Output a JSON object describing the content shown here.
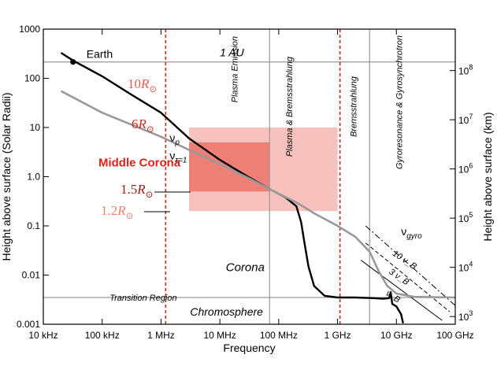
{
  "chart_data": {
    "type": "line",
    "title": "",
    "xlabel": "Frequency",
    "ylabel_left": "Height above surface (Solar Radii)",
    "ylabel_right": "Height above surface (km)",
    "x_scale": "log",
    "y_scale": "log",
    "xlim_hz": [
      10000.0,
      100000000000.0
    ],
    "ylim_rsun": [
      0.001,
      1000
    ],
    "x_ticks": [
      {
        "value": 10000.0,
        "label": "10 kHz"
      },
      {
        "value": 100000.0,
        "label": "100 kHz"
      },
      {
        "value": 1000000.0,
        "label": "1 MHz"
      },
      {
        "value": 10000000.0,
        "label": "10 MHz"
      },
      {
        "value": 100000000.0,
        "label": "100 MHz"
      },
      {
        "value": 1000000000.0,
        "label": "1 GHz"
      },
      {
        "value": 10000000000.0,
        "label": "10 GHz"
      },
      {
        "value": 100000000000.0,
        "label": "100 GHz"
      }
    ],
    "y_ticks_left": [
      {
        "value": 0.001,
        "label": "0.001"
      },
      {
        "value": 0.01,
        "label": "0.01"
      },
      {
        "value": 0.1,
        "label": "0.1"
      },
      {
        "value": 1,
        "label": "1.0"
      },
      {
        "value": 10,
        "label": "10"
      },
      {
        "value": 100,
        "label": "100"
      },
      {
        "value": 1000,
        "label": "1000"
      }
    ],
    "y_ticks_right": [
      {
        "value": 0.001437,
        "base": "10",
        "exp": "3"
      },
      {
        "value": 0.01437,
        "base": "10",
        "exp": "4"
      },
      {
        "value": 0.1437,
        "base": "10",
        "exp": "5"
      },
      {
        "value": 1.437,
        "base": "10",
        "exp": "6"
      },
      {
        "value": 14.37,
        "base": "10",
        "exp": "7"
      },
      {
        "value": 143.7,
        "base": "10",
        "exp": "8"
      }
    ],
    "series": [
      {
        "name": "nu_p",
        "label_base": "ν",
        "label_sub": "p",
        "color": "#000000",
        "points": [
          [
            20000.0,
            330
          ],
          [
            32000.0,
            230
          ],
          [
            100000.0,
            110
          ],
          [
            300000.0,
            48
          ],
          [
            1000000.0,
            20
          ],
          [
            3000000.0,
            6
          ],
          [
            10000000.0,
            2.2
          ],
          [
            30000000.0,
            1.0
          ],
          [
            70000000.0,
            0.56
          ],
          [
            130000000.0,
            0.38
          ],
          [
            200000000.0,
            0.25
          ],
          [
            240000000.0,
            0.12
          ],
          [
            270000000.0,
            0.05
          ],
          [
            320000000.0,
            0.015
          ],
          [
            400000000.0,
            0.006
          ],
          [
            600000000.0,
            0.0038
          ],
          [
            1000000000.0,
            0.0035
          ],
          [
            2000000000.0,
            0.0035
          ],
          [
            4000000000.0,
            0.0034
          ],
          [
            6000000000.0,
            0.0033
          ],
          [
            7500000000.0,
            0.0034
          ],
          [
            8000000000.0,
            0.0045
          ],
          [
            8500000000.0,
            0.0026
          ],
          [
            10000000000.0,
            0.0023
          ],
          [
            12000000000.0,
            0.0016
          ],
          [
            13000000000.0,
            0.00105
          ]
        ]
      },
      {
        "name": "nu_tau1",
        "label_base": "ν",
        "label_sub": "τ=1",
        "color": "#999999",
        "points": [
          [
            20000.0,
            55
          ],
          [
            100000.0,
            20
          ],
          [
            1000000.0,
            6.5
          ],
          [
            3000000.0,
            3.5
          ],
          [
            10000000.0,
            1.8
          ],
          [
            30000000.0,
            0.95
          ],
          [
            100000000.0,
            0.45
          ],
          [
            200000000.0,
            0.3
          ],
          [
            400000000.0,
            0.18
          ],
          [
            1000000000.0,
            0.1
          ],
          [
            2000000000.0,
            0.06
          ],
          [
            3500000000.0,
            0.03
          ],
          [
            5000000000.0,
            0.012
          ],
          [
            7000000000.0,
            0.006
          ],
          [
            10000000000.0,
            0.0042
          ],
          [
            20000000000.0,
            0.0036
          ],
          [
            100000000000.0,
            0.0035
          ]
        ]
      }
    ],
    "gyro_lines": [
      {
        "label": "ν_B",
        "style": "solid",
        "points": [
          [
            2500000000.0,
            0.02
          ],
          [
            60000000000.0,
            0.0012
          ]
        ]
      },
      {
        "label": "3 ν_B",
        "style": "dashed",
        "points": [
          [
            3000000000.0,
            0.045
          ],
          [
            80000000000.0,
            0.0018
          ]
        ]
      },
      {
        "label": "10 ν_B",
        "style": "dashdot",
        "points": [
          [
            3000000000.0,
            0.1
          ],
          [
            100000000000.0,
            0.0024
          ]
        ]
      }
    ],
    "regions": [
      {
        "name": "outer",
        "x": [
          3000000.0,
          1000000000.0
        ],
        "y": [
          0.2,
          10
        ],
        "color": "#f7c2bd"
      },
      {
        "name": "inner",
        "x": [
          3000000.0,
          70000000.0
        ],
        "y": [
          0.5,
          5
        ],
        "color": "#ee7f76"
      }
    ],
    "vertical_lines": [
      {
        "x": 1200000.0,
        "color": "#d62728",
        "style": "dotted"
      },
      {
        "x": 1100000000.0,
        "color": "#d62728",
        "style": "dotted"
      },
      {
        "x": 70000000.0,
        "color": "#999999",
        "style": "solid"
      },
      {
        "x": 3500000000.0,
        "color": "#999999",
        "style": "solid"
      }
    ],
    "horizontal_lines": [
      {
        "y": 215,
        "label": "1 AU"
      },
      {
        "y": 0.0035,
        "label": "Transition Region"
      }
    ],
    "earth": {
      "label": "Earth",
      "x": 32000.0,
      "y": 215
    },
    "annotations": {
      "middle_corona": "Middle Corona",
      "corona": "Corona",
      "chromosphere": "Chromosphere",
      "plasma_emission": "Plasma Emission",
      "plasma_brems": "Plasma & Bremsstrahlung",
      "bremsstrahlung": "Bremsstrahlung",
      "gyro": "Gyroresonance & Gyrosynchrotron",
      "nu_gyro_base": "ν",
      "nu_gyro_sub": "gyro"
    },
    "radius_labels": [
      {
        "value": "10",
        "symbol": "R",
        "sub": "⊙",
        "color": "#e8594f",
        "y": 10
      },
      {
        "value": "6",
        "symbol": "R",
        "sub": "⊙",
        "color": "#cc2a20",
        "y": 6
      },
      {
        "value": "1.5",
        "symbol": "R",
        "sub": "⊙",
        "color": "#9c1c16",
        "y": 1.5
      },
      {
        "value": "1.2",
        "symbol": "R",
        "sub": "⊙",
        "color": "#f08070",
        "y": 1.2
      }
    ]
  }
}
